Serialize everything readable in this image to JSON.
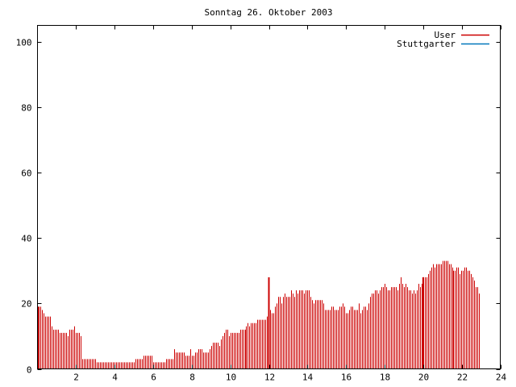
{
  "chart_data": {
    "type": "bar",
    "title": "Sonntag 26. Oktober 2003",
    "xlabel": "",
    "ylabel": "",
    "xlim": [
      0,
      24
    ],
    "ylim": [
      0,
      105
    ],
    "x_ticks": [
      2,
      4,
      6,
      8,
      10,
      12,
      14,
      16,
      18,
      20,
      22,
      24
    ],
    "y_ticks": [
      0,
      20,
      40,
      60,
      80,
      100
    ],
    "grid": false,
    "legend_position": "top-right",
    "colors": {
      "User": "#cc0000",
      "Stuttgarter": "#0077bb"
    },
    "interval_hours": 0.0833,
    "series": [
      {
        "name": "User",
        "values": [
          19,
          19,
          19,
          18,
          17,
          16,
          16,
          16,
          16,
          13,
          12,
          12,
          12,
          12,
          11,
          11,
          11,
          11,
          11,
          10,
          12,
          12,
          12,
          13,
          11,
          11,
          11,
          10,
          3,
          3,
          3,
          3,
          3,
          3,
          3,
          3,
          3,
          2,
          2,
          2,
          2,
          2,
          2,
          2,
          2,
          2,
          2,
          2,
          2,
          2,
          2,
          2,
          2,
          2,
          2,
          2,
          2,
          2,
          2,
          2,
          2,
          3,
          3,
          3,
          3,
          3,
          4,
          4,
          4,
          4,
          4,
          4,
          2,
          2,
          2,
          2,
          2,
          2,
          2,
          2,
          3,
          3,
          3,
          3,
          3,
          6,
          5,
          5,
          5,
          5,
          5,
          5,
          4,
          4,
          4,
          6,
          4,
          4,
          5,
          5,
          6,
          6,
          6,
          5,
          5,
          5,
          5,
          6,
          7,
          8,
          8,
          8,
          8,
          7,
          9,
          10,
          11,
          12,
          12,
          10,
          11,
          11,
          11,
          11,
          11,
          11,
          12,
          12,
          12,
          12,
          13,
          14,
          13,
          14,
          14,
          14,
          14,
          15,
          15,
          15,
          15,
          15,
          15,
          16,
          17,
          18,
          17,
          17,
          19,
          20,
          22,
          22,
          20,
          22,
          23,
          22,
          22,
          22,
          24,
          23,
          22,
          24,
          23,
          24,
          24,
          24,
          23,
          24,
          24,
          24,
          22,
          21,
          20,
          21,
          21,
          21,
          21,
          21,
          20,
          18,
          18,
          18,
          18,
          19,
          19,
          18,
          18,
          18,
          19,
          19,
          20,
          19,
          17,
          17,
          18,
          19,
          19,
          18,
          18,
          18,
          20,
          17,
          18,
          19,
          19,
          18,
          20,
          22,
          23,
          23,
          24,
          24,
          23,
          24,
          25,
          25,
          26,
          25,
          24,
          24,
          25,
          25,
          25,
          25,
          24,
          26,
          28,
          26,
          25,
          26,
          25,
          24,
          24,
          23,
          24,
          23,
          24,
          26,
          25,
          26,
          28,
          28,
          28,
          29,
          30,
          31,
          32,
          31,
          32,
          32,
          32,
          32,
          33,
          33,
          33,
          33,
          32,
          32,
          31,
          30,
          30,
          31,
          31,
          29,
          30,
          30,
          31,
          31,
          30,
          30,
          29,
          28,
          27,
          25,
          25,
          23
        ]
      },
      {
        "name": "Stuttgarter",
        "values": []
      }
    ],
    "highlight_hours": [
      12,
      20
    ]
  }
}
